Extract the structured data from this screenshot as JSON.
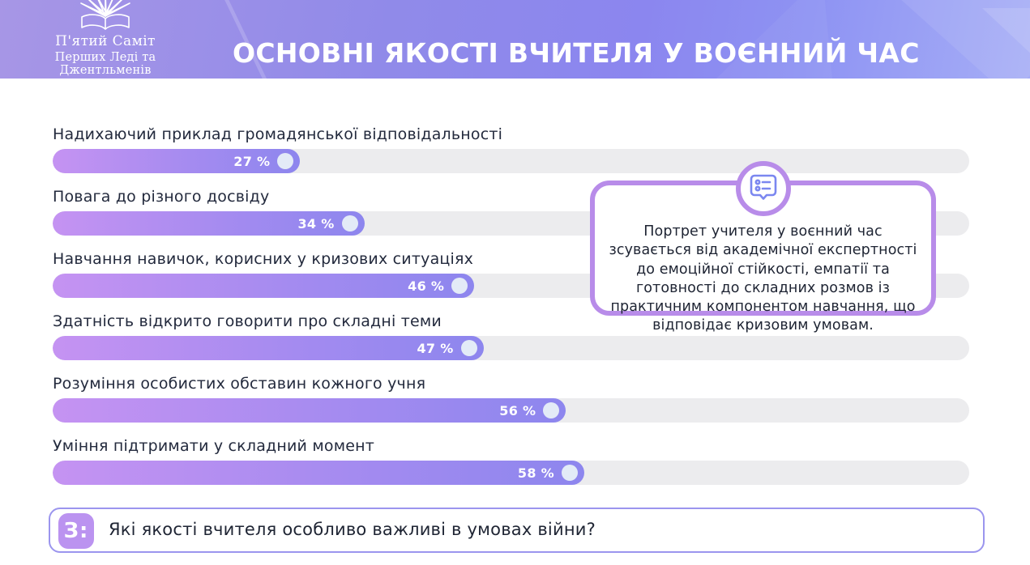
{
  "header": {
    "title": "ОСНОВНІ ЯКОСТІ ВЧИТЕЛЯ У ВОЄННИЙ ЧАС",
    "logo_line1": "П'ятий Саміт",
    "logo_line2": "Перших Леді та Джентльменів",
    "emblem_icon": "open-book-rays-icon",
    "colors": {
      "bg_left": "#a796e6",
      "bg_mid": "#8b86ef",
      "bg_right": "#a6aef6",
      "title_text": "#ffffff"
    }
  },
  "chart_data": {
    "type": "bar",
    "orientation": "horizontal",
    "categories": [
      "Надихаючий приклад громадянської відповідальності",
      "Повага до різного досвіду",
      "Навчання навичок, корисних у кризових ситуаціях",
      "Здатність відкрито говорити про складні теми",
      "Розуміння особистих обставин кожного учня",
      "Уміння підтримати у складний момент"
    ],
    "values": [
      27,
      34,
      46,
      47,
      56,
      58
    ],
    "value_labels": [
      "27 %",
      "34 %",
      "46 %",
      "47 %",
      "56 %",
      "58 %"
    ],
    "unit": "%",
    "xlim": [
      0,
      100
    ],
    "grid": false,
    "legend": false,
    "colors": {
      "fill_gradient_start": "#c593f2",
      "fill_gradient_end": "#8d86ee",
      "track": "#ececee",
      "end_dot": "#e3ebf7",
      "value_text": "#ffffff",
      "label_text": "#232a3d"
    }
  },
  "callout": {
    "icon": "chat-list-icon",
    "icon_color": "#7b87f0",
    "border_color": "#b88ce9",
    "text": "Портрет учителя у воєнний час зсувається від академічної експертності до емоційної стійкості, емпатії та готовності до складних розмов із практичним компонентом навчання, що відповідає кризовим умовам."
  },
  "question": {
    "badge_label": "З:",
    "badge_color": "#bb93f0",
    "border_color": "#9b95ee",
    "text": "Які якості вчителя особливо важливі в умовах війни?"
  }
}
